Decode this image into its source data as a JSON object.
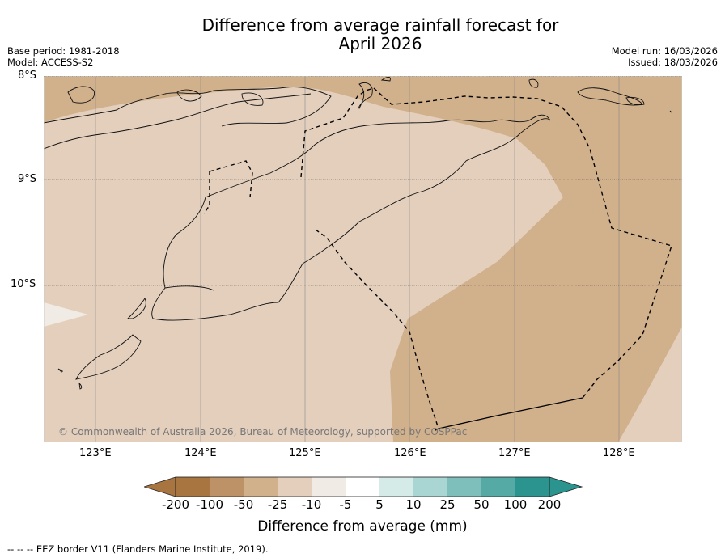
{
  "title_line1": "Difference from average rainfall forecast for",
  "title_line2": "April 2026",
  "meta_left": [
    "Base period: 1981-2018",
    "Model: ACCESS-S2"
  ],
  "meta_right": [
    "Model run: 16/03/2026",
    "Issued: 18/03/2026"
  ],
  "y_ticks": [
    "8°S",
    "9°S",
    "10°S"
  ],
  "x_ticks": [
    "123°E",
    "124°E",
    "125°E",
    "126°E",
    "127°E",
    "128°E"
  ],
  "copyright": "© Commonwealth of Australia 2026, Bureau of Meteorology, supported by COSPPac",
  "colorbar": {
    "label": "Difference from average (mm)",
    "ticks": [
      "-200",
      "-100",
      "-50",
      "-25",
      "-10",
      "-5",
      "5",
      "10",
      "25",
      "50",
      "100",
      "200"
    ],
    "colors": [
      "#a87440",
      "#a87440",
      "#bd9266",
      "#d1b08c",
      "#e3cfbc",
      "#f1ebe5",
      "#ffffff",
      "#d4ebe8",
      "#a9d5d2",
      "#7fbfbb",
      "#55aaa5",
      "#2b948f",
      "#2b948f"
    ]
  },
  "eez_note": "--  --  -- EEZ border V11 (Flanders Marine Institute, 2019).",
  "palette": {
    "dark_tan": "#d1b08c",
    "light_tan": "#e3cfbc",
    "off_white": "#f1ebe5"
  }
}
